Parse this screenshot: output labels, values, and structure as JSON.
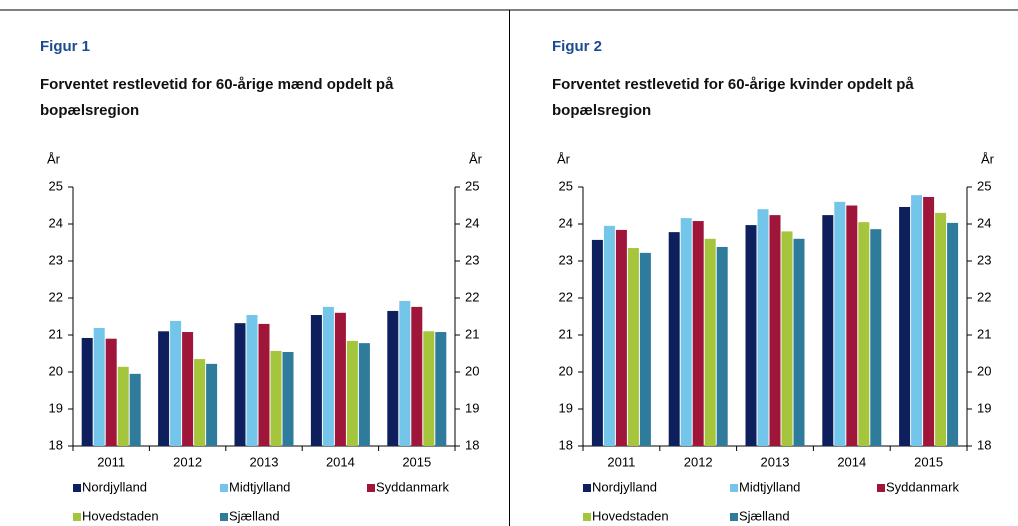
{
  "chart_data": [
    {
      "type": "bar",
      "figure": "Figur 1",
      "title": "Forventet restlevetid for 60-årige mænd opdelt på bopælsregion",
      "ylabel": "År",
      "y2label": "År",
      "categories": [
        "2011",
        "2012",
        "2013",
        "2014",
        "2015"
      ],
      "series": [
        {
          "name": "Nordjylland",
          "color": "#0d1f5c",
          "values": [
            20.92,
            21.1,
            21.32,
            21.54,
            21.65
          ]
        },
        {
          "name": "Midtjylland",
          "color": "#74c5ea",
          "values": [
            21.19,
            21.38,
            21.54,
            21.76,
            21.92
          ]
        },
        {
          "name": "Syddanmark",
          "color": "#a0163b",
          "values": [
            20.9,
            21.08,
            21.3,
            21.6,
            21.76
          ]
        },
        {
          "name": "Hovedstaden",
          "color": "#a5c53c",
          "values": [
            20.14,
            20.35,
            20.57,
            20.84,
            21.1
          ]
        },
        {
          "name": "Sjælland",
          "color": "#2f7b9c",
          "values": [
            19.95,
            20.22,
            20.54,
            20.78,
            21.08
          ]
        }
      ],
      "ylim": [
        18,
        25
      ],
      "yticks": [
        18,
        19,
        20,
        21,
        22,
        23,
        24,
        25
      ],
      "y2lim": [
        18,
        25
      ],
      "y2ticks": [
        18,
        19,
        20,
        21,
        22,
        23,
        24,
        25
      ]
    },
    {
      "type": "bar",
      "figure": "Figur 2",
      "title": "Forventet restlevetid for 60-årige kvinder opdelt på bopælsregion",
      "ylabel": "År",
      "y2label": "År",
      "categories": [
        "2011",
        "2012",
        "2013",
        "2014",
        "2015"
      ],
      "series": [
        {
          "name": "Nordjylland",
          "color": "#0d1f5c",
          "values": [
            23.57,
            23.78,
            23.97,
            24.24,
            24.46
          ]
        },
        {
          "name": "Midtjylland",
          "color": "#74c5ea",
          "values": [
            23.95,
            24.16,
            24.4,
            24.6,
            24.78
          ]
        },
        {
          "name": "Syddanmark",
          "color": "#a0163b",
          "values": [
            23.84,
            24.08,
            24.24,
            24.5,
            24.73
          ]
        },
        {
          "name": "Hovedstaden",
          "color": "#a5c53c",
          "values": [
            23.35,
            23.6,
            23.8,
            24.05,
            24.3
          ]
        },
        {
          "name": "Sjælland",
          "color": "#2f7b9c",
          "values": [
            23.22,
            23.38,
            23.6,
            23.86,
            24.03
          ]
        }
      ],
      "ylim": [
        18,
        25
      ],
      "yticks": [
        18,
        19,
        20,
        21,
        22,
        23,
        24,
        25
      ],
      "y2lim": [
        18,
        25
      ],
      "y2ticks": [
        18,
        19,
        20,
        21,
        22,
        23,
        24,
        25
      ]
    }
  ]
}
